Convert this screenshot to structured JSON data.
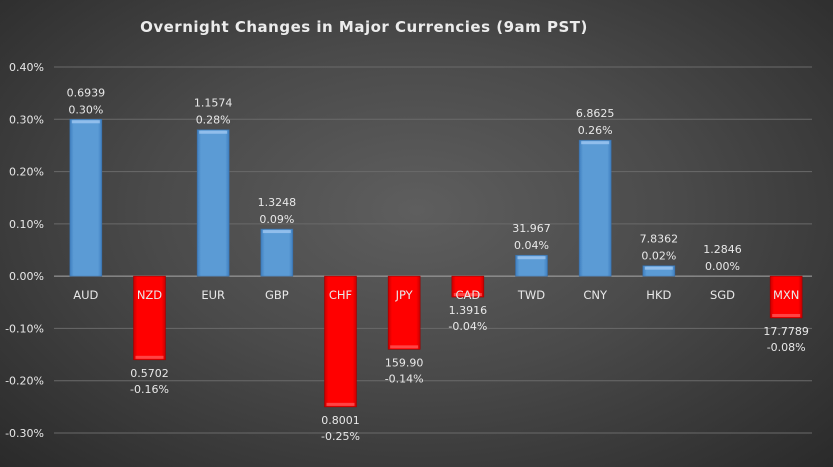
{
  "chart_data": {
    "type": "bar",
    "title": "Overnight Changes in Major Currencies (9am PST)",
    "xlabel": "",
    "ylabel": "",
    "ylim": [
      -0.3,
      0.4
    ],
    "yticks": [
      "0.40%",
      "0.30%",
      "0.20%",
      "0.10%",
      "0.00%",
      "-0.10%",
      "-0.20%",
      "-0.30%"
    ],
    "ytick_values": [
      0.4,
      0.3,
      0.2,
      0.1,
      0.0,
      -0.1,
      -0.2,
      -0.3
    ],
    "grid": true,
    "categories": [
      "AUD",
      "NZD",
      "EUR",
      "GBP",
      "CHF",
      "JPY",
      "CAD",
      "TWD",
      "CNY",
      "HKD",
      "SGD",
      "MXN"
    ],
    "values": [
      0.3,
      -0.16,
      0.28,
      0.09,
      -0.25,
      -0.14,
      -0.04,
      0.04,
      0.26,
      0.02,
      0.0,
      -0.08
    ],
    "value_labels": [
      "0.30%",
      "-0.16%",
      "0.28%",
      "0.09%",
      "-0.25%",
      "-0.14%",
      "-0.04%",
      "0.04%",
      "0.26%",
      "0.02%",
      "0.00%",
      "-0.08%"
    ],
    "rates": [
      "0.6939",
      "0.5702",
      "1.1574",
      "1.3248",
      "0.8001",
      "159.90",
      "1.3916",
      "31.967",
      "6.8625",
      "7.8362",
      "1.2846",
      "17.7789"
    ],
    "colors": {
      "positive": "#5b9bd5",
      "negative": "#ff0000"
    }
  }
}
